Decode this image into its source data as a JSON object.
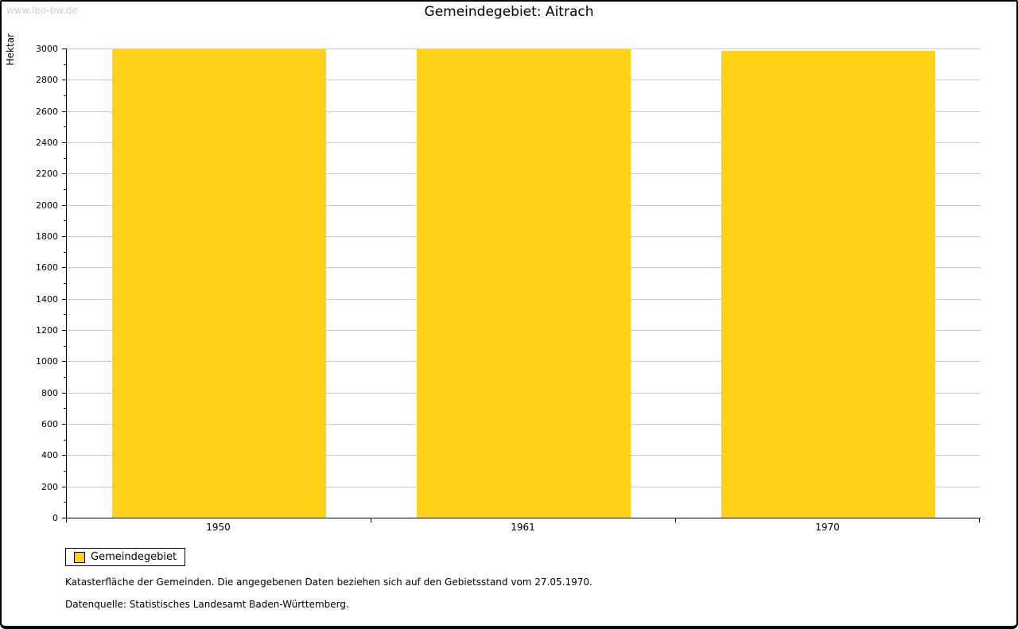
{
  "watermark": "www.leo-bw.de",
  "title": "Gemeindegebiet: Aitrach",
  "chart_data": {
    "type": "bar",
    "title": "Gemeindegebiet: Aitrach",
    "categories": [
      "1950",
      "1961",
      "1970"
    ],
    "series": [
      {
        "name": "Gemeindegebiet",
        "values": [
          2993,
          2993,
          2983
        ]
      }
    ],
    "xlabel": "",
    "ylabel": "Hektar",
    "ylim": [
      0,
      3000
    ],
    "ytick_step": 200,
    "yminor_step": 100,
    "grid": true,
    "legend_position": "bottom-left",
    "bar_color": "#FCD116",
    "gridline_color": "#cccccc"
  },
  "legend": {
    "items": [
      {
        "label": "Gemeindegebiet",
        "color": "#FCD116"
      }
    ]
  },
  "footnotes": [
    "Katasterfläche der Gemeinden. Die angegebenen Daten beziehen sich auf den Gebietsstand vom 27.05.1970.",
    "Datenquelle: Statistisches Landesamt Baden-Württemberg."
  ]
}
